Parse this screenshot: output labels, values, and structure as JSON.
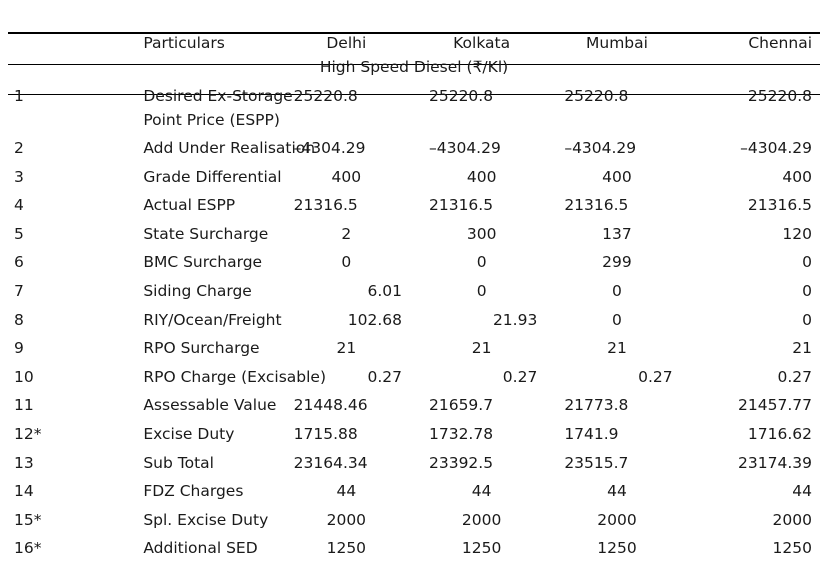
{
  "header": {
    "no": "",
    "particulars": "Particulars",
    "cities": [
      "Delhi",
      "Kolkata",
      "Mumbai",
      "Chennai"
    ]
  },
  "section_title": "High Speed Diesel (₹/Kl)",
  "rows": [
    {
      "no": "1",
      "particular_line1": "Desired Ex-Storage",
      "particular_line2": "Point Price (ESPP)",
      "delhi": "25220.8",
      "kolkata": "25220.8",
      "mumbai": "25220.8",
      "chennai": "25220.8"
    },
    {
      "no": "2",
      "particular": "Add Under Realisation",
      "delhi": "–4304.29",
      "kolkata": "–4304.29",
      "mumbai": "–4304.29",
      "chennai": "–4304.29"
    },
    {
      "no": "3",
      "particular": "Grade Differential",
      "delhi": "400",
      "kolkata": "400",
      "mumbai": "400",
      "chennai": "400"
    },
    {
      "no": "4",
      "particular": "Actual ESPP",
      "delhi": "21316.5",
      "kolkata": "21316.5",
      "mumbai": "21316.5",
      "chennai": "21316.5"
    },
    {
      "no": "5",
      "particular": "State Surcharge",
      "delhi": "2",
      "kolkata": "300",
      "mumbai": "137",
      "chennai": "120"
    },
    {
      "no": "6",
      "particular": "BMC Surcharge",
      "delhi": "0",
      "kolkata": "0",
      "mumbai": "299",
      "chennai": "0"
    },
    {
      "no": "7",
      "particular": "Siding Charge",
      "delhi": "6.01",
      "kolkata": "0",
      "mumbai": "0",
      "chennai": "0"
    },
    {
      "no": "8",
      "particular": "RIY/Ocean/Freight",
      "delhi": "102.68",
      "kolkata": "21.93",
      "mumbai": "0",
      "chennai": "0"
    },
    {
      "no": "9",
      "particular": "RPO Surcharge",
      "delhi": "21",
      "kolkata": "21",
      "mumbai": "21",
      "chennai": "21"
    },
    {
      "no": "10",
      "particular": "RPO Charge (Excisable)",
      "delhi": "0.27",
      "kolkata": "0.27",
      "mumbai": "0.27",
      "chennai": "0.27"
    },
    {
      "no": "11",
      "particular": "Assessable Value",
      "delhi": "21448.46",
      "kolkata": "21659.7",
      "mumbai": "21773.8",
      "chennai": "21457.77"
    },
    {
      "no": "12*",
      "particular": "Excise Duty",
      "delhi": "1715.88",
      "kolkata": "1732.78",
      "mumbai": "1741.9",
      "chennai": "1716.62"
    },
    {
      "no": "13",
      "particular": "Sub Total",
      "delhi": "23164.34",
      "kolkata": "23392.5",
      "mumbai": "23515.7",
      "chennai": "23174.39"
    },
    {
      "no": "14",
      "particular": "FDZ Charges",
      "delhi": "44",
      "kolkata": "44",
      "mumbai": "44",
      "chennai": "44"
    },
    {
      "no": "15*",
      "particular": "Spl. Excise Duty",
      "delhi": "2000",
      "kolkata": "2000",
      "mumbai": "2000",
      "chennai": "2000"
    },
    {
      "no": "16*",
      "particular": "Additional SED",
      "delhi": "1250",
      "kolkata": "1250",
      "mumbai": "1250",
      "chennai": "1250"
    }
  ]
}
